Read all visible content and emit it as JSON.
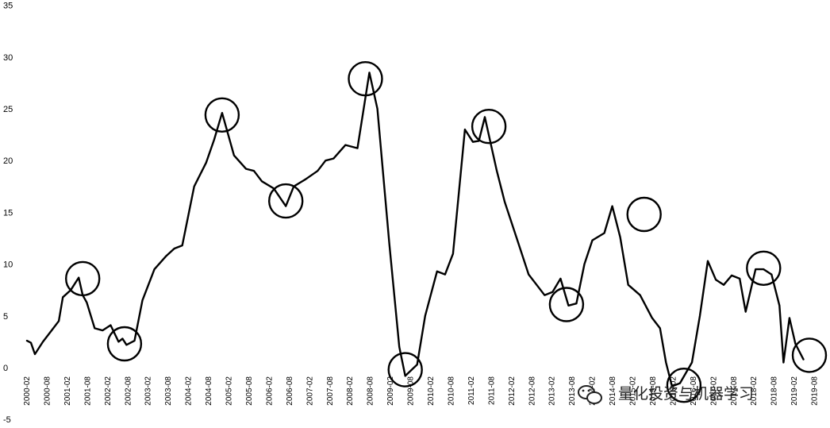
{
  "chart_data": {
    "type": "line",
    "title": "",
    "xlabel": "",
    "ylabel": "",
    "ylim": [
      -5,
      35
    ],
    "yticks": [
      -5,
      0,
      5,
      10,
      15,
      20,
      25,
      30,
      35
    ],
    "grid": false,
    "legend": "none",
    "line_color": "#000000",
    "x_tick_labels": [
      "2000-02",
      "2000-08",
      "2001-02",
      "2001-08",
      "2002-02",
      "2002-08",
      "2003-02",
      "2003-08",
      "2004-02",
      "2004-08",
      "2005-02",
      "2005-08",
      "2006-02",
      "2006-08",
      "2007-02",
      "2007-08",
      "2008-02",
      "2008-08",
      "2009-02",
      "2009-08",
      "2010-02",
      "2010-08",
      "2011-02",
      "2011-08",
      "2012-02",
      "2012-08",
      "2013-02",
      "2013-08",
      "2014-02",
      "2014-08",
      "2015-02",
      "2015-08",
      "2016-02",
      "2016-08",
      "2017-02",
      "2017-08",
      "2018-02",
      "2018-08",
      "2019-02",
      "2019-08"
    ],
    "series": [
      {
        "x": [
          2000.1,
          2000.2,
          2000.3,
          2000.5,
          2000.7,
          2000.9,
          2001.0,
          2001.2,
          2001.4,
          2001.5,
          2001.6,
          2001.8,
          2002.0,
          2002.2,
          2002.4,
          2002.5,
          2002.6,
          2002.8,
          2003.0,
          2003.3,
          2003.6,
          2003.8,
          2004.0,
          2004.3,
          2004.6,
          2004.8,
          2005.0,
          2005.3,
          2005.6,
          2005.8,
          2006.0,
          2006.3,
          2006.6,
          2006.8,
          2007.1,
          2007.4,
          2007.6,
          2007.8,
          2008.1,
          2008.4,
          2008.7,
          2008.9,
          2009.2,
          2009.45,
          2009.6,
          2009.9,
          2010.1,
          2010.4,
          2010.6,
          2010.8,
          2011.1,
          2011.3,
          2011.45,
          2011.6,
          2011.9,
          2012.1,
          2012.4,
          2012.7,
          2012.9,
          2013.1,
          2013.3,
          2013.5,
          2013.7,
          2013.9,
          2014.1,
          2014.3,
          2014.6,
          2014.8,
          2015.0,
          2015.2,
          2015.5,
          2015.8,
          2016.0,
          2016.15,
          2016.3,
          2016.5,
          2016.8,
          2017.0,
          2017.2,
          2017.4,
          2017.6,
          2017.8,
          2018.0,
          2018.15,
          2018.4,
          2018.6,
          2018.8,
          2019.0,
          2019.1,
          2019.25,
          2019.4,
          2019.6
        ],
        "values": [
          2.6,
          2.4,
          1.3,
          2.5,
          3.5,
          4.5,
          6.8,
          7.5,
          8.7,
          7.0,
          6.3,
          3.8,
          3.6,
          4.1,
          2.5,
          2.8,
          2.2,
          2.6,
          6.5,
          9.5,
          10.8,
          11.5,
          11.8,
          17.5,
          19.8,
          22.0,
          24.6,
          20.5,
          19.2,
          19.0,
          18.0,
          17.3,
          15.6,
          17.5,
          18.2,
          19.0,
          20.0,
          20.2,
          21.5,
          21.2,
          28.5,
          25.0,
          12.0,
          2.0,
          -0.8,
          0.3,
          5.0,
          9.3,
          9.0,
          11.0,
          23.0,
          21.8,
          21.9,
          24.2,
          19.0,
          16.0,
          12.5,
          9.0,
          8.0,
          7.0,
          7.3,
          8.6,
          6.0,
          6.2,
          10.0,
          12.3,
          13.0,
          15.6,
          12.6,
          8.0,
          7.0,
          4.8,
          3.8,
          0.5,
          -1.8,
          -1.5,
          0.5,
          5.0,
          10.3,
          8.5,
          8.0,
          8.9,
          8.6,
          5.4,
          9.5,
          9.5,
          9.0,
          6.0,
          0.5,
          4.8,
          2.3,
          0.8
        ]
      }
    ],
    "annotations": [
      {
        "type": "circle",
        "x": 2001.5,
        "y": 8.6
      },
      {
        "type": "circle",
        "x": 2002.55,
        "y": 2.3
      },
      {
        "type": "circle",
        "x": 2005.0,
        "y": 24.4
      },
      {
        "type": "circle",
        "x": 2006.6,
        "y": 16.1
      },
      {
        "type": "circle",
        "x": 2008.6,
        "y": 27.9
      },
      {
        "type": "circle",
        "x": 2009.6,
        "y": -0.2
      },
      {
        "type": "circle",
        "x": 2011.7,
        "y": 23.3
      },
      {
        "type": "circle",
        "x": 2013.65,
        "y": 6.1
      },
      {
        "type": "circle",
        "x": 2015.6,
        "y": 14.8
      },
      {
        "type": "circle",
        "x": 2016.6,
        "y": -1.7
      },
      {
        "type": "circle",
        "x": 2018.6,
        "y": 9.6
      },
      {
        "type": "circle",
        "x": 2019.75,
        "y": 1.2
      }
    ]
  },
  "watermark": {
    "text": "量化投资与机器学习"
  }
}
